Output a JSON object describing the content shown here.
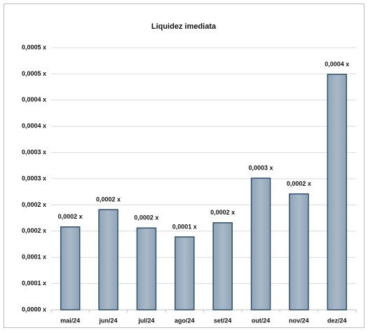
{
  "chart_data": {
    "type": "bar",
    "title": "Liquidez imediata",
    "categories": [
      "mai/24",
      "jun/24",
      "jul/24",
      "ago/24",
      "set/24",
      "out/24",
      "nov/24",
      "dez/24"
    ],
    "values": [
      0.000158,
      0.000191,
      0.000156,
      0.000139,
      0.000166,
      0.000251,
      0.000221,
      0.000449
    ],
    "value_labels": [
      "0,0002 x",
      "0,0002 x",
      "0,0002 x",
      "0,0001 x",
      "0,0002 x",
      "0,0003 x",
      "0,0002 x",
      "0,0004 x"
    ],
    "color": "#8fa4b7",
    "ylim": [
      0,
      0.0005
    ],
    "yticks": [
      {
        "value": 0,
        "label": "0,0000 x"
      },
      {
        "value": 5e-05,
        "label": "0,0001 x"
      },
      {
        "value": 0.0001,
        "label": "0,0001 x"
      },
      {
        "value": 0.00015,
        "label": "0,0002 x"
      },
      {
        "value": 0.0002,
        "label": "0,0002 x"
      },
      {
        "value": 0.00025,
        "label": "0,0003 x"
      },
      {
        "value": 0.0003,
        "label": "0,0003 x"
      },
      {
        "value": 0.00035,
        "label": "0,0004 x"
      },
      {
        "value": 0.0004,
        "label": "0,0004 x"
      },
      {
        "value": 0.00045,
        "label": "0,0005 x"
      },
      {
        "value": 0.0005,
        "label": "0,0005 x"
      }
    ],
    "grid": true
  }
}
